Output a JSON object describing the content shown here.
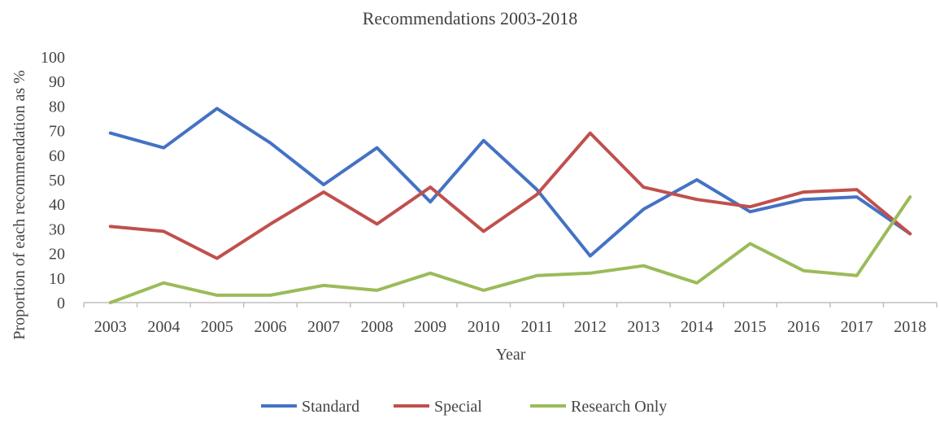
{
  "chart_data": {
    "type": "line",
    "title": "Recommendations 2003-2018",
    "xlabel": "Year",
    "ylabel": "Proportion of each recommendation as %",
    "categories": [
      "2003",
      "2004",
      "2005",
      "2006",
      "2007",
      "2008",
      "2009",
      "2010",
      "2011",
      "2012",
      "2013",
      "2014",
      "2015",
      "2016",
      "2017",
      "2018"
    ],
    "ylim": [
      0,
      100
    ],
    "yticks": [
      0,
      10,
      20,
      30,
      40,
      50,
      60,
      70,
      80,
      90,
      100
    ],
    "grid": false,
    "legend_position": "bottom",
    "series": [
      {
        "name": "Standard",
        "color": "#4472C4",
        "values": [
          69,
          63,
          79,
          65,
          48,
          63,
          41,
          66,
          46,
          19,
          38,
          50,
          37,
          42,
          43,
          28
        ]
      },
      {
        "name": "Special",
        "color": "#C0504D",
        "values": [
          31,
          29,
          18,
          32,
          45,
          32,
          47,
          29,
          44,
          69,
          47,
          42,
          39,
          45,
          46,
          28
        ]
      },
      {
        "name": "Research Only",
        "color": "#9BBB59",
        "values": [
          0,
          8,
          3,
          3,
          7,
          5,
          12,
          5,
          11,
          12,
          15,
          8,
          24,
          13,
          11,
          43
        ]
      }
    ]
  }
}
